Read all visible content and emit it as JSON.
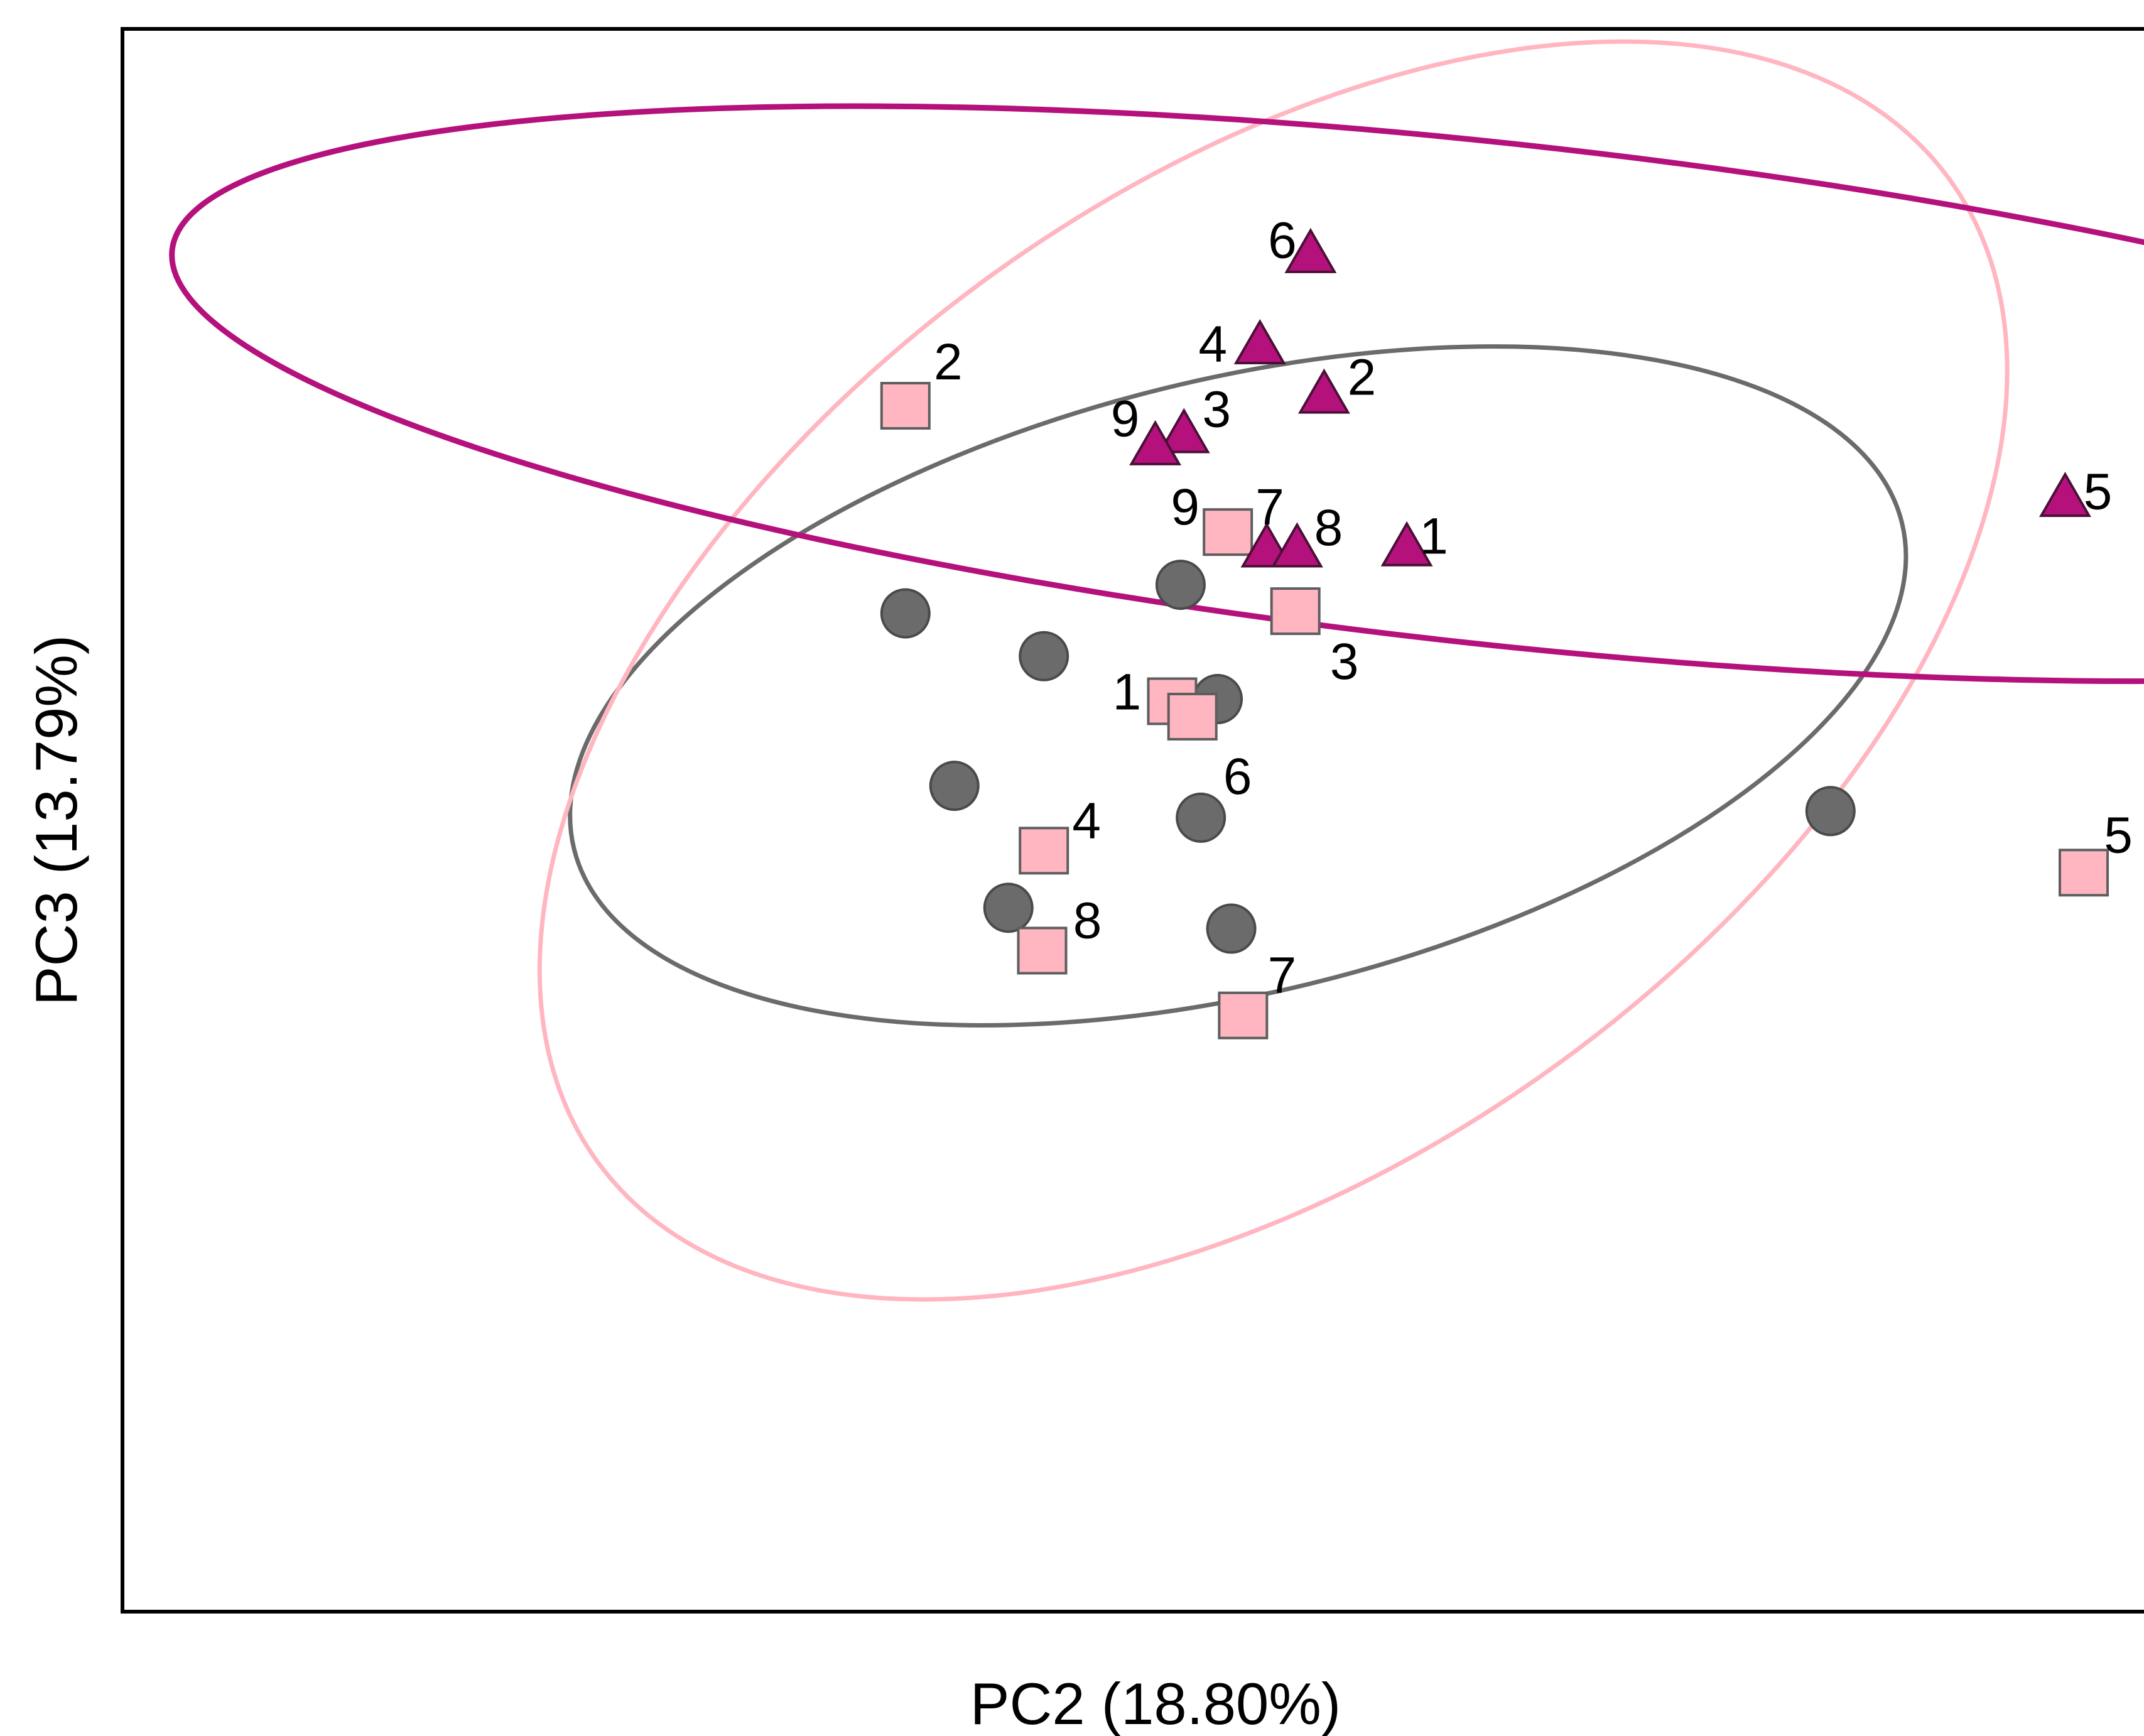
{
  "chart_data": {
    "type": "scatter",
    "title": "",
    "xlabel": "PC2 (18.80%)",
    "ylabel": "PC3 (13.79%)",
    "xlim": [
      0,
      1000
    ],
    "ylim": [
      0,
      1000
    ],
    "grid": false,
    "legend": "none",
    "series": [
      {
        "marker": "circle",
        "color": "#6b6b6b",
        "points": [
          {
            "x": 465,
            "y": 614,
            "label": ""
          },
          {
            "x": 302,
            "y": 588,
            "label": ""
          },
          {
            "x": 384,
            "y": 549,
            "label": ""
          },
          {
            "x": 487,
            "y": 510,
            "label": ""
          },
          {
            "x": 331,
            "y": 431,
            "label": ""
          },
          {
            "x": 477,
            "y": 402,
            "label": ""
          },
          {
            "x": 850,
            "y": 408,
            "label": ""
          },
          {
            "x": 363,
            "y": 320,
            "label": ""
          },
          {
            "x": 495,
            "y": 301,
            "label": ""
          }
        ],
        "ellipse": {
          "cx": 499,
          "cy": 522,
          "rx": 405,
          "ry": 279,
          "rotation": -13.8
        }
      },
      {
        "marker": "square",
        "color": "#ffb6c1",
        "points": [
          {
            "x": 302,
            "y": 777,
            "label": "2"
          },
          {
            "x": 493,
            "y": 662,
            "label": "9"
          },
          {
            "x": 533,
            "y": 590,
            "label": "3"
          },
          {
            "x": 460,
            "y": 508,
            "label": "1"
          },
          {
            "x": 472,
            "y": 494,
            "label": "6"
          },
          {
            "x": 384,
            "y": 372,
            "label": "4"
          },
          {
            "x": 383,
            "y": 281,
            "label": "8"
          },
          {
            "x": 502,
            "y": 222,
            "label": "7"
          },
          {
            "x": 1000,
            "y": 352,
            "label": "5"
          }
        ],
        "ellipse": {
          "cx": 520,
          "cy": 536,
          "rx": 495,
          "ry": 442,
          "rotation": -36
        }
      },
      {
        "marker": "triangle",
        "color": "#b5117d",
        "points": [
          {
            "x": 542,
            "y": 914,
            "label": "6"
          },
          {
            "x": 512,
            "y": 831,
            "label": "4"
          },
          {
            "x": 550,
            "y": 786,
            "label": "2"
          },
          {
            "x": 467,
            "y": 750,
            "label": "3"
          },
          {
            "x": 450,
            "y": 739,
            "label": "9"
          },
          {
            "x": 989,
            "y": 692,
            "label": "5"
          },
          {
            "x": 516,
            "y": 646,
            "label": "7"
          },
          {
            "x": 534,
            "y": 646,
            "label": "8"
          },
          {
            "x": 599,
            "y": 647,
            "label": "1"
          }
        ],
        "ellipse": {
          "cx": 651,
          "cy": 788,
          "rx": 788,
          "ry": 228,
          "rotation": 6.2
        }
      }
    ]
  }
}
